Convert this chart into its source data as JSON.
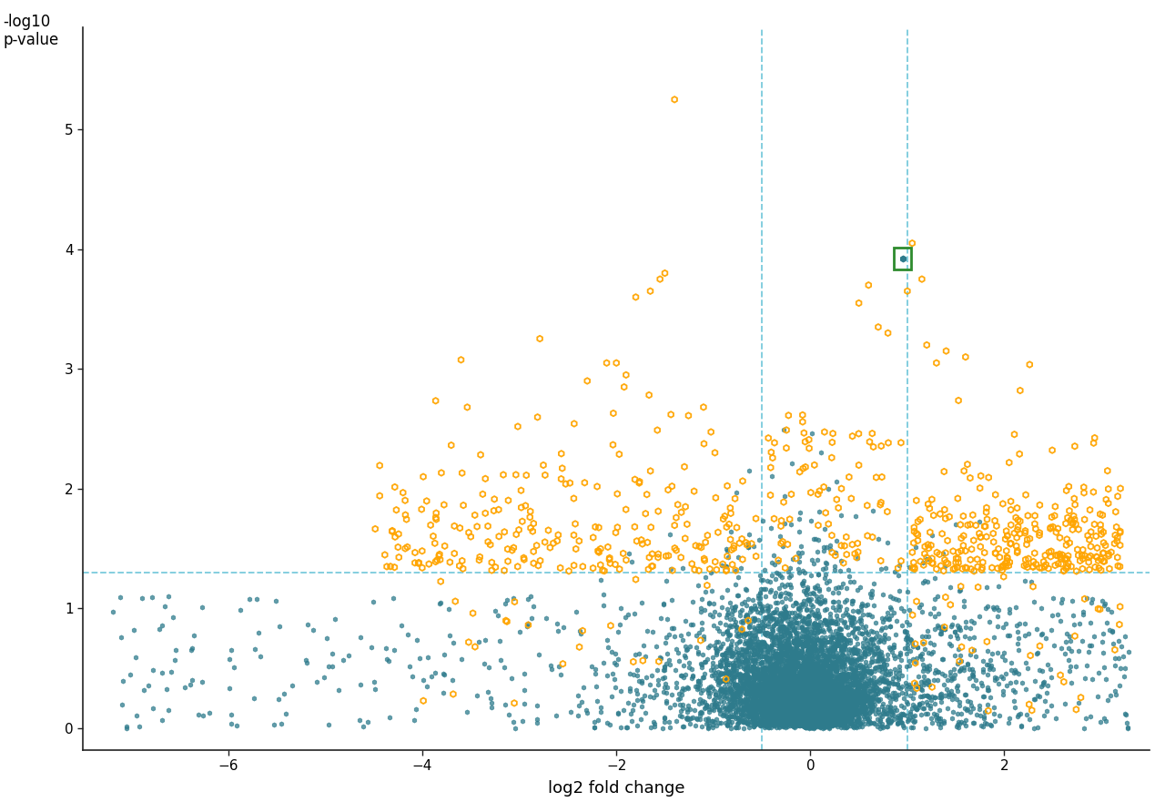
{
  "title": "",
  "xlabel": "log2 fold change",
  "ylabel": "-log10\np-value",
  "xlim": [
    -7.5,
    3.5
  ],
  "ylim": [
    -0.18,
    5.85
  ],
  "xticks": [
    -6,
    -4,
    -2,
    0,
    2
  ],
  "yticks": [
    0,
    1,
    2,
    3,
    4,
    5
  ],
  "vline1": -0.5,
  "vline2": 1.0,
  "hline": 1.3,
  "teal_color": "#2E7B8C",
  "orange_color": "#FFA500",
  "green_box_color": "#2E8B2E",
  "background_color": "#FFFFFF",
  "dashed_line_color": "#6BC4D8",
  "special_point": [
    0.95,
    3.92
  ],
  "seed": 42
}
